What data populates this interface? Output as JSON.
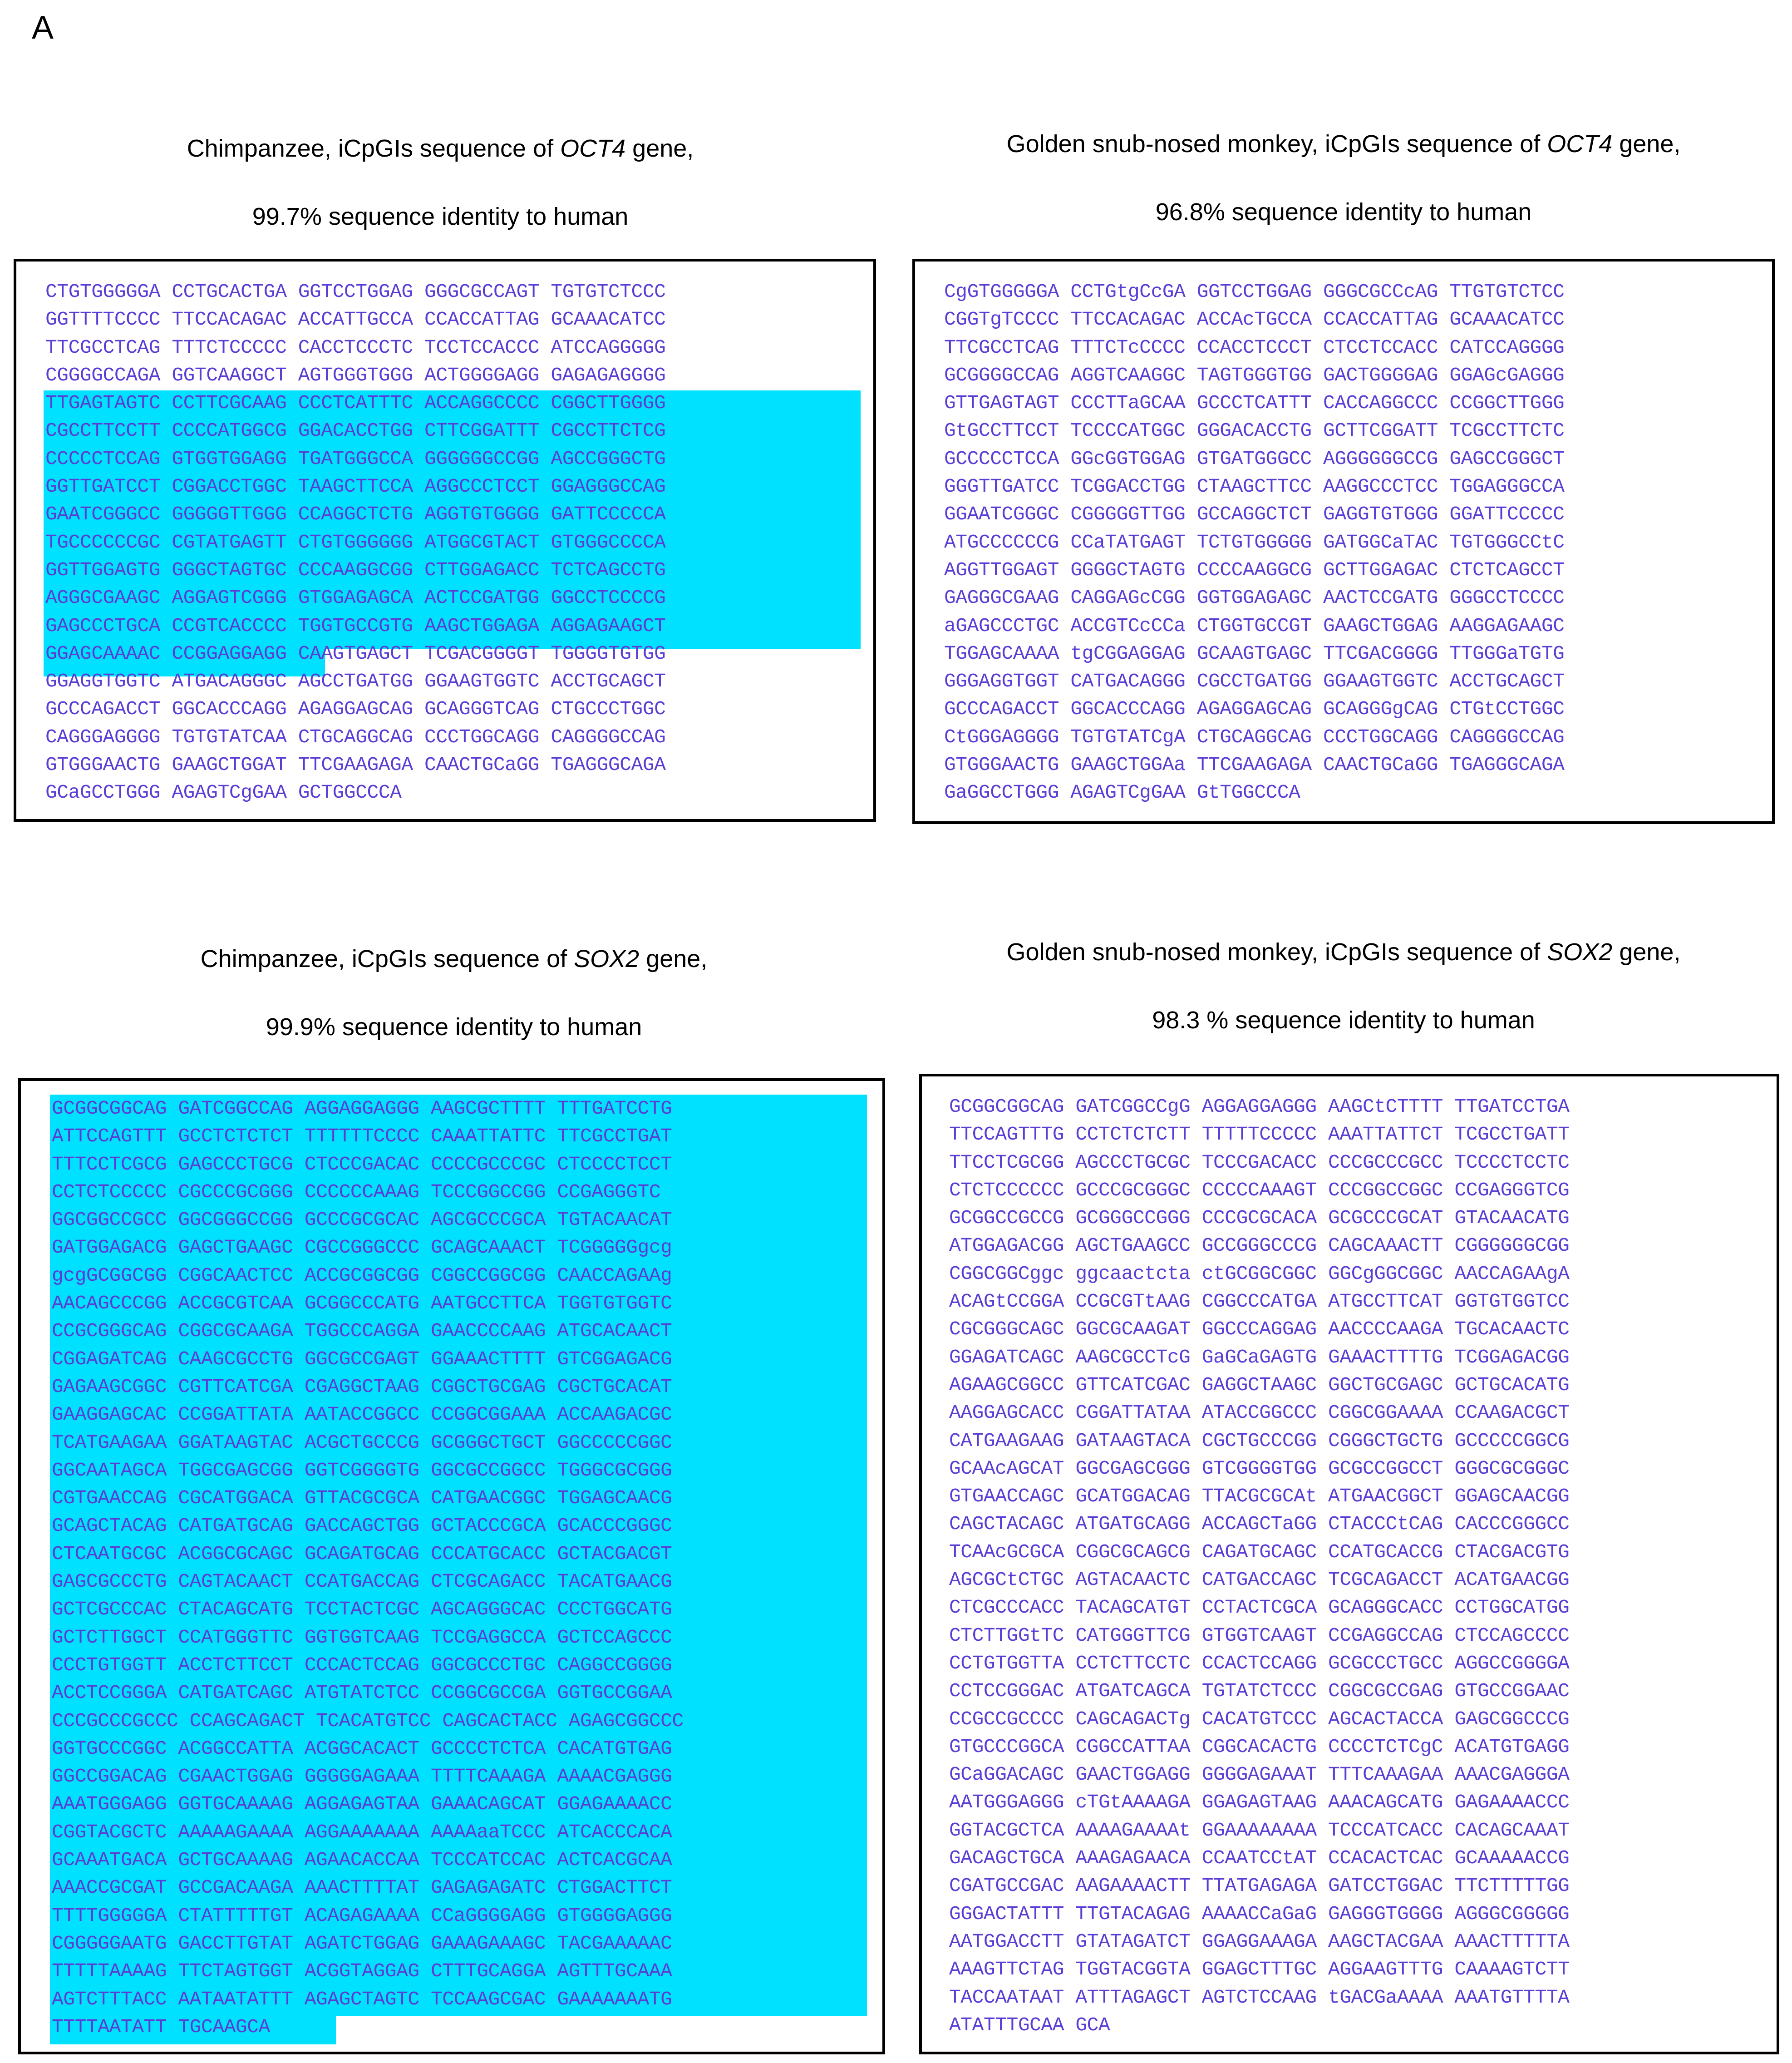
{
  "panel_label": "A",
  "panels": {
    "chimp_oct4": {
      "title": "Chimpanzee, iCpGIs sequence of ",
      "gene": "OCT4",
      "title_suffix": " gene,",
      "identity": "99.7%  sequence identity to human",
      "sequence": "CTGTGGGGGA CCTGCACTGA GGTCCTGGAG GGGCGCCAGT TGTGTCTCCC\nGGTTTTCCCC TTCCACAGAC ACCATTGCCA CCACCATTAG GCAAACATCC\nTTCGCCTCAG TTTCTCCCCC CACCTCCCTC TCCTCCACCC ATCCAGGGGG\nCGGGGCCAGA GGTCAAGGCT AGTGGGTGGG ACTGGGGAGG GAGAGAGGGG\nTTGAGTAGTC CCTTCGCAAG CCCTCATTTC ACCAGGCCCC CGGCTTGGGG\nCGCCTTCCTT CCCCATGGCG GGACACCTGG CTTCGGATTT CGCCTTCTCG\nCCCCCTCCAG GTGGTGGAGG TGATGGGCCA GGGGGGCCGG AGCCGGGCTG\nGGTTGATCCT CGGACCTGGC TAAGCTTCCA AGGCCCTCCT GGAGGGCCAG\nGAATCGGGCC GGGGGTTGGG CCAGGCTCTG AGGTGTGGGG GATTCCCCCA\nTGCCCCCCGC CGTATGAGTT CTGTGGGGGG ATGGCGTACT GTGGGCCCCA\nGGTTGGAGTG GGGCTAGTGC CCCAAGGCGG CTTGGAGACC TCTCAGCCTG\nAGGGCGAAGC AGGAGTCGGG GTGGAGAGCA ACTCCGATGG GGCCTCCCCG\nGAGCCCTGCA CCGTCACCCC TGGTGCCGTG AAGCTGGAGA AGGAGAAGCT\nGGAGCAAAAC CCGGAGGAGG CAAGTGAGCT TCGACGGGGT TGGGGTGTGG\nGGAGGTGGTC ATGACAGGGC AGCCTGATGG GGAAGTGGTC ACCTGCAGCT\nGCCCAGACCT GGCACCCAGG AGAGGAGCAG GCAGGGTCAG CTGCCCTGGC\nCAGGGAGGGG TGTGTATCAA CTGCAGGCAG CCCTGGCAGG CAGGGGCCAG\nGTGGGAACTG GAAGCTGGAT TTCGAAGAGA CAACTGCaGG TGAGGGCAGA\nGCaGCCTGGG AGAGTCgGAA GCTGGCCCA"
    },
    "gsm_oct4": {
      "title": "Golden snub-nosed monkey, iCpGIs sequence of ",
      "gene": "OCT4",
      "title_suffix": " gene,",
      "identity": "96.8%  sequence identity to human",
      "sequence": "CgGTGGGGGA CCTGtgCcGA GGTCCTGGAG GGGCGCCcAG TTGTGTCTCC\nCGGTgTCCCC TTCCACAGAC ACCAcTGCCA CCACCATTAG GCAAACATCC\nTTCGCCTCAG TTTCTcCCCC CCACCTCCCT CTCCTCCACC CATCCAGGGG\nGCGGGGCCAG AGGTCAAGGC TAGTGGGTGG GACTGGGGAG GGAGcGAGGG\nGTTGAGTAGT CCCTTaGCAA GCCCTCATTT CACCAGGCCC CCGGCTTGGG\nGtGCCTTCCT TCCCCATGGC GGGACACCTG GCTTCGGATT TCGCCTTCTC\nGCCCCCTCCA GGcGGTGGAG GTGATGGGCC AGGGGGGCCG GAGCCGGGCT\nGGGTTGATCC TCGGACCTGG CTAAGCTTCC AAGGCCCTCC TGGAGGGCCA\nGGAATCGGGC CGGGGGTTGG GCCAGGCTCT GAGGTGTGGG GGATTCCCCC\nATGCCCCCCG CCaTATGAGT TCTGTGGGGG GATGGCaTAC TGTGGGCCtC\nAGGTTGGAGT GGGGCTAGTG CCCCAAGGCG GCTTGGAGAC CTCTCAGCCT\nGAGGGCGAAG CAGGAGcCGG GGTGGAGAGC AACTCCGATG GGGCCTCCCC\naGAGCCCTGC ACCGTCcCCa CTGGTGCCGT GAAGCTGGAG AAGGAGAAGC\nTGGAGCAAAA tgCGGAGGAG GCAAGTGAGC TTCGACGGGG TTGGGaTGTG\nGGGAGGTGGT CATGACAGGG CGCCTGATGG GGAAGTGGTC ACCTGCAGCT\nGCCCAGACCT GGCACCCAGG AGAGGAGCAG GCAGGGgCAG CTGtCCTGGC\nCtGGGAGGGG TGTGTATCgA CTGCAGGCAG CCCTGGCAGG CAGGGGCCAG\nGTGGGAACTG GAAGCTGGAa TTCGAAGAGA CAACTGCaGG TGAGGGCAGA\nGaGGCCTGGG AGAGTCgGAA GtTGGCCCA"
    },
    "chimp_sox2": {
      "title": "Chimpanzee, iCpGIs sequence of ",
      "gene": "SOX2",
      "title_suffix": " gene,",
      "identity": "99.9%  sequence identity to human",
      "sequence": "GCGGCGGCAG GATCGGCCAG AGGAGGAGGG AAGCGCTTTT TTTGATCCTG\nATTCCAGTTT GCCTCTCTCT TTTTTTCCCC CAAATTATTC TTCGCCTGAT\nTTTCCTCGCG GAGCCCTGCG CTCCCGACAC CCCCGCCCGC CTCCCCTCCT\nCCTCTCCCCC CGCCCGCGGG CCCCCCAAAG TCCCGGCCGG CCGAGGGTC\nGGCGGCCGCC GGCGGGCCGG GCCCGCGCAC AGCGCCCGCA TGTACAACAT\nGATGGAGACG GAGCTGAAGC CGCCGGGCCC GCAGCAAACT TCGGGGGgcg\ngcgGCGGCGG CGGCAACTCC ACCGCGGCGG CGGCCGGCGG CAACCAGAAg\nAACAGCCCGG ACCGCGTCAA GCGGCCCATG AATGCCTTCA TGGTGTGGTC\nCCGCGGGCAG CGGCGCAAGA TGGCCCAGGA GAACCCCAAG ATGCACAACT\nCGGAGATCAG CAAGCGCCTG GGCGCCGAGT GGAAACTTTT GTCGGAGACG\nGAGAAGCGGC CGTTCATCGA CGAGGCTAAG CGGCTGCGAG CGCTGCACAT\nGAAGGAGCAC CCGGATTATA AATACCGGCC CCGGCGGAAA ACCAAGACGC\nTCATGAAGAA GGATAAGTAC ACGCTGCCCG GCGGGCTGCT GGCCCCCGGC\nGGCAATAGCA TGGCGAGCGG GGTCGGGGTG GGCGCCGGCC TGGGCGCGGG\nCGTGAACCAG CGCATGGACA GTTACGCGCA CATGAACGGC TGGAGCAACG\nGCAGCTACAG CATGATGCAG GACCAGCTGG GCTACCCGCA GCACCCGGGC\nCTCAATGCGC ACGGCGCAGC GCAGATGCAG CCCATGCACC GCTACGACGT\nGAGCGCCCTG CAGTACAACT CCATGACCAG CTCGCAGACC TACATGAACG\nGCTCGCCCAC CTACAGCATG TCCTACTCGC AGCAGGGCAC CCCTGGCATG\nGCTCTTGGCT CCATGGGTTC GGTGGTCAAG TCCGAGGCCA GCTCCAGCCC\nCCCTGTGGTT ACCTCTTCCT CCCACTCCAG GGCGCCCTGC CAGGCCGGGG\nACCTCCGGGA CATGATCAGC ATGTATCTCC CCGGCGCCGA GGTGCCGGAA\nCCCGCCCGCCC CCAGCAGACT TCACATGTCC CAGCACTACC AGAGCGGCCC\nGGTGCCCGGC ACGGCCATTA ACGGCACACT GCCCCTCTCA CACATGTGAG\nGGCCGGACAG CGAACTGGAG GGGGGAGAAA TTTTCAAAGA AAAACGAGGG\nAAATGGGAGG GGTGCAAAAG AGGAGAGTAA GAAACAGCAT GGAGAAAACC\nCGGTACGCTC AAAAAGAAAA AGGAAAAAAA AAAAaaTCCC ATCACCCACA\nGCAAATGACA GCTGCAAAAG AGAACACCAA TCCCATCCAC ACTCACGCAA\nAAACCGCGAT GCCGACAAGA AAACTTTTAT GAGAGAGATC CTGGACTTCT\nTTTTGGGGGA CTATTTTTGT ACAGAGAAAA CCaGGGGAGG GTGGGGAGGG\nCGGGGGAATG GACCTTGTAT AGATCTGGAG GAAAGAAAGC TACGAAAAAC\nTTTTTAAAAG TTCTAGTGGT ACGGTAGGAG CTTTGCAGGA AGTTTGCAAA\nAGTCTTTACC AATAATATTT AGAGCTAGTC TCCAAGCGAC GAAAAAAATG\nTTTTAATATT TGCAAGCA"
    },
    "gsm_sox2": {
      "title": "Golden snub-nosed monkey, iCpGIs sequence of ",
      "gene": "SOX2",
      "title_suffix": " gene,",
      "identity": "98.3 %  sequence identity to human",
      "sequence": "GCGGCGGCAG GATCGGCCgG AGGAGGAGGG AAGCtCTTTT TTGATCCTGA\nTTCCAGTTTG CCTCTCTCTT TTTTTCCCCC AAATTATTCT TCGCCTGATT\nTTCCTCGCGG AGCCCTGCGC TCCCGACACC CCCGCCCGCC TCCCCTCCTC\nCTCTCCCCCC GCCCGCGGGC CCCCCAAAGT CCCGGCCGGC CCGAGGGTCG\nGCGGCCGCCG GCGGGCCGGG CCCGCGCACA GCGCCCGCAT GTACAACATG\nATGGAGACGG AGCTGAAGCC GCCGGGCCCG CAGCAAACTT CGGGGGGCGG\nCGGCGGCggc ggcaactcta ctGCGGCGGC GGCgGGCGGC AACCAGAAgA\nACAGtCCGGA CCGCGTtAAG CGGCCCATGA ATGCCTTCAT GGTGTGGTCC\nCGCGGGCAGC GGCGCAAGAT GGCCCAGGAG AACCCCAAGA TGCACAACTC\nGGAGATCAGC AAGCGCCTcG GaGCaGAGTG GAAACTTTTG TCGGAGACGG\nAGAAGCGGCC GTTCATCGAC GAGGCTAAGC GGCTGCGAGC GCTGCACATG\nAAGGAGCACC CGGATTATAA ATACCGGCCC CGGCGGAAAA CCAAGACGCT\nCATGAAGAAG GATAAGTACA CGCTGCCCGG CGGGCTGCTG GCCCCCGGCG\nGCAAcAGCAT GGCGAGCGGG GTCGGGGTGG GCGCCGGCCT GGGCGCGGGC\nGTGAACCAGC GCATGGACAG TTACGCGCAt ATGAACGGCT GGAGCAACGG\nCAGCTACAGC ATGATGCAGG ACCAGCTaGG CTACCCtCAG CACCCGGGCC\nTCAAcGCGCA CGGCGCAGCG CAGATGCAGC CCATGCACCG CTACGACGTG\nAGCGCtCTGC AGTACAACTC CATGACCAGC TCGCAGACCT ACATGAACGG\nCTCGCCCACC TACAGCATGT CCTACTCGCA GCAGGGCACC CCTGGCATGG\nCTCTTGGtTC CATGGGTTCG GTGGTCAAGT CCGAGGCCAG CTCCAGCCCC\nCCTGTGGTTA CCTCTTCCTC CCACTCCAGG GCGCCCTGCC AGGCCGGGGA\nCCTCCGGGAC ATGATCAGCA TGTATCTCCC CGGCGCCGAG GTGCCGGAAC\nCCGCCGCCCC CAGCAGACTg CACATGTCCC AGCACTACCA GAGCGGCCCG\nGTGCCCGGCA CGGCCATTAA CGGCACACTG CCCCTCTCgC ACATGTGAGG\nGCaGGACAGC GAACTGGAGG GGGGAGAAAT TTTCAAAGAA AAACGAGGGA\nAATGGGAGGG cTGtAAAAGA GGAGAGTAAG AAACAGCATG GAGAAAACCC\nGGTACGCTCA AAAAGAAAAt GGAAAAAAAA TCCCATCACC CACAGCAAAT\nGACAGCTGCA AAAGAGAACA CCAATCCtAT CCACACTCAC GCAAAAACCG\nCGATGCCGAC AAGAAAACTT TTATGAGAGA GATCCTGGAC TTCTTTTTGG\nGGGACTATTT TTGTACAGAG AAAACCaGaG GAGGGTGGGG AGGGCGGGGG\nAATGGACCTT GTATAGATCT GGAGGAAAGA AAGCTACGAA AAACTTTTTA\nAAAGTTCTAG TGGTACGGTA GGAGCTTTGC AGGAAGTTTG CAAAAGTCTT\nTACCAATAAT ATTTAGAGCT AGTCTCCAAG tGACGaAAAA AAATGTTTTA\nATATTTGCAA GCA"
    }
  }
}
